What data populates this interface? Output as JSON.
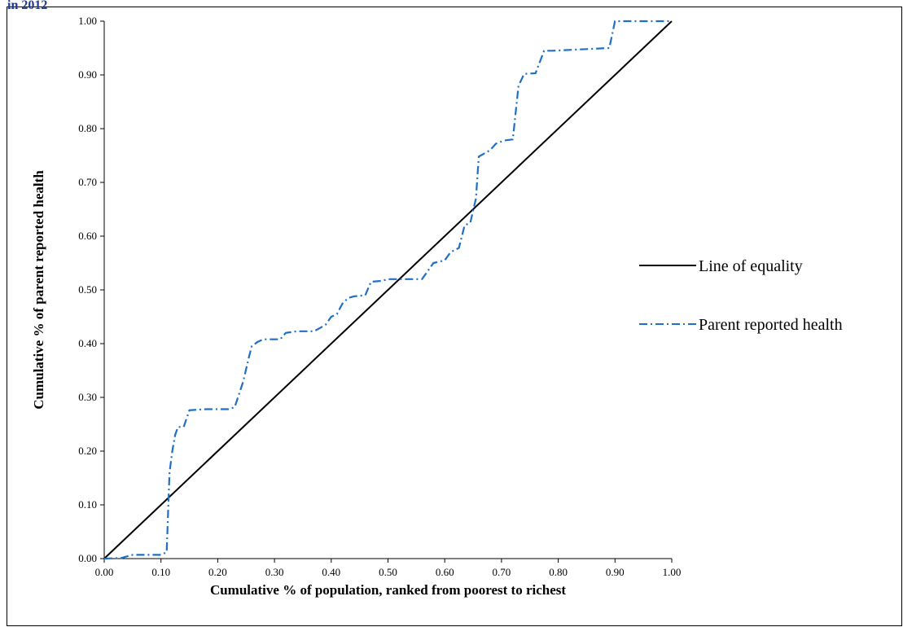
{
  "header_fragment": "in 2012",
  "chart_data": {
    "type": "line",
    "title": "",
    "xlabel": "Cumulative % of population, ranked from poorest to richest",
    "ylabel": "Cumulative % of parent reported health",
    "xlim": [
      0,
      1
    ],
    "ylim": [
      0,
      1
    ],
    "x_ticks": [
      "0.00",
      "0.10",
      "0.20",
      "0.30",
      "0.40",
      "0.50",
      "0.60",
      "0.70",
      "0.80",
      "0.90",
      "1.00"
    ],
    "y_ticks": [
      "0.00",
      "0.10",
      "0.20",
      "0.30",
      "0.40",
      "0.50",
      "0.60",
      "0.70",
      "0.80",
      "0.90",
      "1.00"
    ],
    "grid": false,
    "legend_position": "right",
    "series": [
      {
        "name": "Line of equality",
        "color": "#000000",
        "style": "solid",
        "points": [
          [
            0,
            0
          ],
          [
            1,
            1
          ]
        ]
      },
      {
        "name": "Parent reported health",
        "color": "#1f6fc5",
        "style": "dash-dot",
        "points": [
          [
            0.0,
            0.0
          ],
          [
            0.03,
            0.001
          ],
          [
            0.05,
            0.007
          ],
          [
            0.1,
            0.007
          ],
          [
            0.11,
            0.012
          ],
          [
            0.115,
            0.16
          ],
          [
            0.12,
            0.2
          ],
          [
            0.125,
            0.23
          ],
          [
            0.13,
            0.245
          ],
          [
            0.14,
            0.245
          ],
          [
            0.15,
            0.276
          ],
          [
            0.18,
            0.278
          ],
          [
            0.22,
            0.278
          ],
          [
            0.23,
            0.282
          ],
          [
            0.245,
            0.33
          ],
          [
            0.255,
            0.375
          ],
          [
            0.26,
            0.395
          ],
          [
            0.27,
            0.403
          ],
          [
            0.28,
            0.408
          ],
          [
            0.31,
            0.408
          ],
          [
            0.32,
            0.42
          ],
          [
            0.34,
            0.423
          ],
          [
            0.37,
            0.423
          ],
          [
            0.39,
            0.435
          ],
          [
            0.4,
            0.45
          ],
          [
            0.41,
            0.455
          ],
          [
            0.42,
            0.475
          ],
          [
            0.43,
            0.485
          ],
          [
            0.44,
            0.488
          ],
          [
            0.46,
            0.49
          ],
          [
            0.47,
            0.515
          ],
          [
            0.49,
            0.517
          ],
          [
            0.5,
            0.52
          ],
          [
            0.56,
            0.52
          ],
          [
            0.58,
            0.55
          ],
          [
            0.6,
            0.555
          ],
          [
            0.61,
            0.57
          ],
          [
            0.625,
            0.578
          ],
          [
            0.635,
            0.62
          ],
          [
            0.645,
            0.625
          ],
          [
            0.655,
            0.67
          ],
          [
            0.66,
            0.748
          ],
          [
            0.68,
            0.76
          ],
          [
            0.69,
            0.772
          ],
          [
            0.705,
            0.778
          ],
          [
            0.72,
            0.78
          ],
          [
            0.73,
            0.88
          ],
          [
            0.74,
            0.902
          ],
          [
            0.76,
            0.903
          ],
          [
            0.775,
            0.945
          ],
          [
            0.79,
            0.945
          ],
          [
            0.85,
            0.948
          ],
          [
            0.89,
            0.95
          ],
          [
            0.9,
            1.0
          ],
          [
            1.0,
            1.0
          ]
        ]
      }
    ]
  }
}
